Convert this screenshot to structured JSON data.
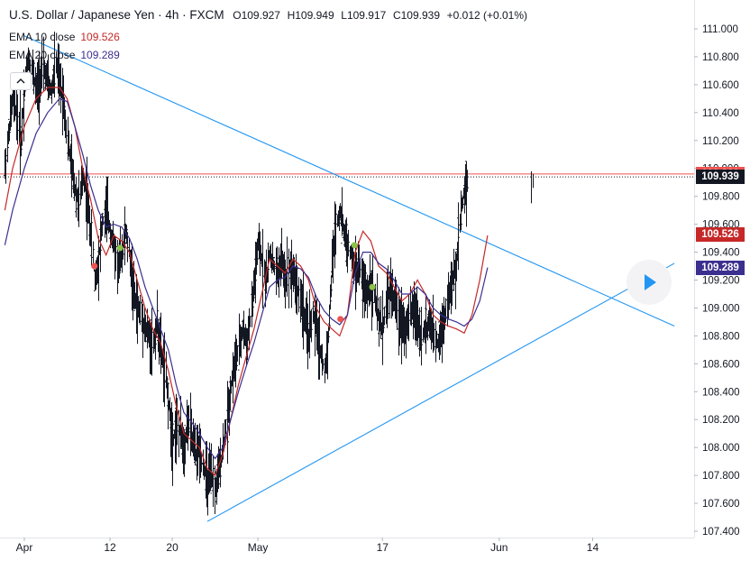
{
  "header": {
    "symbol_title": "U.S. Dollar / Japanese Yen · 4h · FXCM",
    "open": "O109.927",
    "high": "H109.949",
    "low": "L109.917",
    "close": "C109.939",
    "change": "+0.012 (+0.01%)"
  },
  "indicators": [
    {
      "label": "EMA 10 close",
      "value": "109.526",
      "color": "#c62828"
    },
    {
      "label": "EMA 20 close",
      "value": "109.289",
      "color": "#3b2f8f"
    }
  ],
  "collapse_icon": "chevron-up-icon",
  "play_icon": "play-icon",
  "price_badges": [
    {
      "label": "109.960",
      "price": 109.96,
      "color": "#ef5350"
    },
    {
      "label": "109.939",
      "price": 109.939,
      "color": "#131722"
    },
    {
      "label": "109.526",
      "price": 109.526,
      "color": "#c62828"
    },
    {
      "label": "109.289",
      "price": 109.289,
      "color": "#3b2f8f"
    }
  ],
  "chart_data": {
    "type": "line",
    "title": "U.S. Dollar / Japanese Yen · 4h · FXCM",
    "ylim": [
      107.35,
      111.15
    ],
    "y_ticks": [
      "111.000",
      "110.800",
      "110.600",
      "110.400",
      "110.200",
      "110.000",
      "109.800",
      "109.600",
      "109.400",
      "109.200",
      "109.000",
      "108.800",
      "108.600",
      "108.400",
      "108.200",
      "108.000",
      "107.800",
      "107.600",
      "107.400"
    ],
    "x_ticks": [
      {
        "label": "Apr",
        "x": 0
      },
      {
        "label": "12",
        "x": 11
      },
      {
        "label": "20",
        "x": 19
      },
      {
        "label": "May",
        "x": 30
      },
      {
        "label": "17",
        "x": 46
      },
      {
        "label": "Jun",
        "x": 61
      },
      {
        "label": "14",
        "x": 73
      }
    ],
    "xlim": [
      -2.5,
      83.5
    ],
    "horizontal_lines": [
      {
        "name": "resistance",
        "y": 109.96,
        "color": "#ef5350",
        "style": "solid"
      },
      {
        "name": "last-price",
        "y": 109.939,
        "color": "#131722",
        "style": "dotted"
      }
    ],
    "trend_lines": [
      {
        "name": "upper-trendline",
        "points": [
          [
            0,
            110.95
          ],
          [
            83.5,
            108.87
          ]
        ],
        "color": "#2196f3"
      },
      {
        "name": "lower-trendline",
        "points": [
          [
            23.5,
            107.47
          ],
          [
            83.5,
            109.32
          ]
        ],
        "color": "#2196f3"
      }
    ],
    "series": [
      {
        "name": "EMA 10 close",
        "color": "#c62828",
        "values": [
          [
            -2.5,
            109.7
          ],
          [
            -1.5,
            110.0
          ],
          [
            0,
            110.3
          ],
          [
            1.5,
            110.5
          ],
          [
            3,
            110.58
          ],
          [
            4.5,
            110.58
          ],
          [
            5.5,
            110.5
          ],
          [
            6.5,
            110.3
          ],
          [
            7.5,
            110.0
          ],
          [
            8.5,
            109.78
          ],
          [
            9.5,
            109.5
          ],
          [
            10.5,
            109.38
          ],
          [
            11.5,
            109.52
          ],
          [
            12.5,
            109.48
          ],
          [
            13.5,
            109.4
          ],
          [
            14.5,
            109.2
          ],
          [
            15.5,
            109.0
          ],
          [
            16.5,
            108.85
          ],
          [
            17.5,
            108.75
          ],
          [
            18.5,
            108.55
          ],
          [
            19.5,
            108.3
          ],
          [
            20.5,
            108.1
          ],
          [
            21.5,
            108.05
          ],
          [
            22.5,
            108.0
          ],
          [
            23.5,
            107.85
          ],
          [
            24.5,
            107.8
          ],
          [
            25.5,
            107.95
          ],
          [
            26.5,
            108.2
          ],
          [
            27.5,
            108.45
          ],
          [
            28.5,
            108.65
          ],
          [
            29.5,
            108.85
          ],
          [
            30.5,
            109.1
          ],
          [
            31.5,
            109.35
          ],
          [
            32.5,
            109.3
          ],
          [
            33.5,
            109.25
          ],
          [
            34.5,
            109.35
          ],
          [
            35.5,
            109.3
          ],
          [
            36.5,
            109.2
          ],
          [
            37.5,
            109.0
          ],
          [
            38.5,
            108.9
          ],
          [
            39.5,
            108.85
          ],
          [
            40.5,
            108.8
          ],
          [
            41.5,
            108.95
          ],
          [
            42.5,
            109.4
          ],
          [
            43.5,
            109.55
          ],
          [
            44.5,
            109.48
          ],
          [
            45.5,
            109.3
          ],
          [
            46.5,
            109.25
          ],
          [
            47.5,
            109.15
          ],
          [
            48.5,
            109.05
          ],
          [
            49.5,
            109.1
          ],
          [
            50.5,
            109.2
          ],
          [
            51.5,
            109.1
          ],
          [
            52.5,
            108.95
          ],
          [
            53.5,
            108.9
          ],
          [
            54.5,
            108.87
          ],
          [
            55.5,
            108.85
          ],
          [
            56.5,
            108.82
          ],
          [
            57.5,
            108.95
          ],
          [
            58.5,
            109.2
          ],
          [
            59.5,
            109.52
          ]
        ]
      },
      {
        "name": "EMA 20 close",
        "color": "#3b2f8f",
        "values": [
          [
            -2.5,
            109.45
          ],
          [
            -1.5,
            109.7
          ],
          [
            0,
            110.0
          ],
          [
            1.5,
            110.25
          ],
          [
            3,
            110.4
          ],
          [
            4.5,
            110.5
          ],
          [
            5.5,
            110.48
          ],
          [
            6.5,
            110.3
          ],
          [
            7.5,
            110.1
          ],
          [
            8.5,
            109.88
          ],
          [
            9.5,
            109.7
          ],
          [
            10.5,
            109.58
          ],
          [
            11.5,
            109.6
          ],
          [
            12.5,
            109.58
          ],
          [
            13.5,
            109.5
          ],
          [
            14.5,
            109.35
          ],
          [
            15.5,
            109.15
          ],
          [
            16.5,
            109.0
          ],
          [
            17.5,
            108.85
          ],
          [
            18.5,
            108.7
          ],
          [
            19.5,
            108.45
          ],
          [
            20.5,
            108.25
          ],
          [
            21.5,
            108.18
          ],
          [
            22.5,
            108.1
          ],
          [
            23.5,
            108.0
          ],
          [
            24.5,
            107.92
          ],
          [
            25.5,
            108.0
          ],
          [
            26.5,
            108.2
          ],
          [
            27.5,
            108.4
          ],
          [
            28.5,
            108.58
          ],
          [
            29.5,
            108.75
          ],
          [
            30.5,
            108.95
          ],
          [
            31.5,
            109.15
          ],
          [
            32.5,
            109.2
          ],
          [
            33.5,
            109.22
          ],
          [
            34.5,
            109.3
          ],
          [
            35.5,
            109.28
          ],
          [
            36.5,
            109.22
          ],
          [
            37.5,
            109.08
          ],
          [
            38.5,
            108.98
          ],
          [
            39.5,
            108.92
          ],
          [
            40.5,
            108.88
          ],
          [
            41.5,
            108.95
          ],
          [
            42.5,
            109.25
          ],
          [
            43.5,
            109.4
          ],
          [
            44.5,
            109.4
          ],
          [
            45.5,
            109.32
          ],
          [
            46.5,
            109.28
          ],
          [
            47.5,
            109.2
          ],
          [
            48.5,
            109.1
          ],
          [
            49.5,
            109.1
          ],
          [
            50.5,
            109.15
          ],
          [
            51.5,
            109.1
          ],
          [
            52.5,
            109.0
          ],
          [
            53.5,
            108.95
          ],
          [
            54.5,
            108.92
          ],
          [
            55.5,
            108.9
          ],
          [
            56.5,
            108.87
          ],
          [
            57.5,
            108.92
          ],
          [
            58.5,
            109.05
          ],
          [
            59.5,
            109.29
          ]
        ]
      }
    ],
    "ohlc_mid": [
      [
        -2.5,
        110.0
      ],
      [
        -2,
        110.3
      ],
      [
        -1.5,
        110.5
      ],
      [
        -1,
        110.4
      ],
      [
        -0.5,
        110.2
      ],
      [
        0,
        110.6
      ],
      [
        0.5,
        110.8
      ],
      [
        1,
        110.7
      ],
      [
        1.5,
        110.55
      ],
      [
        2,
        110.65
      ],
      [
        2.5,
        110.7
      ],
      [
        3,
        110.6
      ],
      [
        3.5,
        110.55
      ],
      [
        4,
        110.75
      ],
      [
        4.5,
        110.6
      ],
      [
        5,
        110.5
      ],
      [
        5.5,
        110.2
      ],
      [
        6,
        110.0
      ],
      [
        6.5,
        109.85
      ],
      [
        7,
        109.75
      ],
      [
        7.5,
        109.95
      ],
      [
        8,
        109.8
      ],
      [
        8.5,
        109.55
      ],
      [
        9,
        109.2
      ],
      [
        9.5,
        109.35
      ],
      [
        10,
        109.6
      ],
      [
        10.5,
        109.7
      ],
      [
        11,
        109.55
      ],
      [
        11.5,
        109.45
      ],
      [
        12,
        109.3
      ],
      [
        12.5,
        109.4
      ],
      [
        13,
        109.55
      ],
      [
        13.5,
        109.35
      ],
      [
        14,
        109.1
      ],
      [
        14.5,
        109.0
      ],
      [
        15,
        108.95
      ],
      [
        15.5,
        108.85
      ],
      [
        16,
        108.8
      ],
      [
        16.5,
        108.75
      ],
      [
        17,
        108.9
      ],
      [
        17.5,
        108.7
      ],
      [
        18,
        108.55
      ],
      [
        18.5,
        108.3
      ],
      [
        19,
        108.05
      ],
      [
        19.5,
        108.15
      ],
      [
        20,
        108.1
      ],
      [
        20.5,
        108.0
      ],
      [
        21,
        108.2
      ],
      [
        21.5,
        108.05
      ],
      [
        22,
        107.95
      ],
      [
        22.5,
        108.0
      ],
      [
        23,
        107.85
      ],
      [
        23.5,
        107.75
      ],
      [
        24,
        107.8
      ],
      [
        24.5,
        107.7
      ],
      [
        25,
        107.85
      ],
      [
        25.5,
        108.0
      ],
      [
        26,
        108.2
      ],
      [
        26.5,
        108.45
      ],
      [
        27,
        108.6
      ],
      [
        27.5,
        108.7
      ],
      [
        28,
        108.85
      ],
      [
        28.5,
        108.75
      ],
      [
        29,
        108.9
      ],
      [
        29.5,
        109.2
      ],
      [
        30,
        109.45
      ],
      [
        30.5,
        109.35
      ],
      [
        31,
        109.2
      ],
      [
        31.5,
        109.4
      ],
      [
        32,
        109.3
      ],
      [
        32.5,
        109.25
      ],
      [
        33,
        109.35
      ],
      [
        33.5,
        109.2
      ],
      [
        34,
        109.3
      ],
      [
        34.5,
        109.25
      ],
      [
        35,
        109.15
      ],
      [
        35.5,
        109.05
      ],
      [
        36,
        108.9
      ],
      [
        36.5,
        108.8
      ],
      [
        37,
        108.95
      ],
      [
        37.5,
        108.85
      ],
      [
        38,
        108.7
      ],
      [
        38.5,
        108.55
      ],
      [
        39,
        108.8
      ],
      [
        39.5,
        109.3
      ],
      [
        40,
        109.6
      ],
      [
        40.5,
        109.7
      ],
      [
        41,
        109.55
      ],
      [
        41.5,
        109.45
      ],
      [
        42,
        109.35
      ],
      [
        42.5,
        109.25
      ],
      [
        43,
        109.3
      ],
      [
        43.5,
        109.15
      ],
      [
        44,
        109.1
      ],
      [
        44.5,
        109.2
      ],
      [
        45,
        109.05
      ],
      [
        45.5,
        108.9
      ],
      [
        46,
        108.85
      ],
      [
        46.5,
        109.05
      ],
      [
        47,
        109.15
      ],
      [
        47.5,
        109.05
      ],
      [
        48,
        108.95
      ],
      [
        48.5,
        108.9
      ],
      [
        49,
        108.85
      ],
      [
        49.5,
        108.95
      ],
      [
        50,
        109.0
      ],
      [
        50.5,
        108.9
      ],
      [
        51,
        108.8
      ],
      [
        51.5,
        108.85
      ],
      [
        52,
        108.9
      ],
      [
        52.5,
        108.8
      ],
      [
        53,
        108.75
      ],
      [
        53.5,
        108.85
      ],
      [
        54,
        108.95
      ],
      [
        54.5,
        109.1
      ],
      [
        55,
        109.2
      ],
      [
        55.5,
        109.3
      ],
      [
        56,
        109.7
      ],
      [
        56.5,
        109.85
      ],
      [
        57,
        109.94
      ]
    ],
    "signal_dots": [
      {
        "x": 9.0,
        "y": 109.3,
        "color": "#ef5350"
      },
      {
        "x": 12.3,
        "y": 109.43,
        "color": "#8bc34a"
      },
      {
        "x": 40.6,
        "y": 108.92,
        "color": "#ef5350"
      },
      {
        "x": 42.4,
        "y": 109.45,
        "color": "#8bc34a"
      },
      {
        "x": 44.7,
        "y": 109.15,
        "color": "#8bc34a"
      }
    ]
  }
}
